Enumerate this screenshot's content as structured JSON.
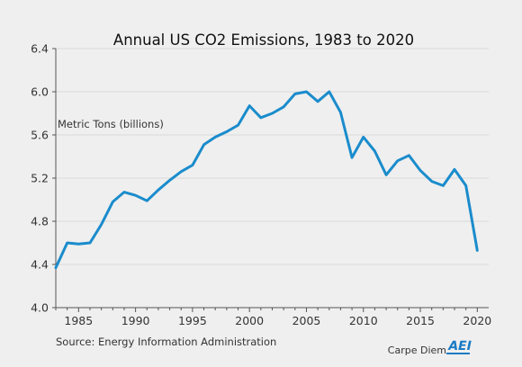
{
  "chart_data": {
    "type": "line",
    "title": "Annual US CO2 Emissions, 1983 to 2020",
    "ylabel": "Metric Tons (billions)",
    "xlabel": "",
    "source": "Source: Energy Information Administration",
    "branding": "Carpe Diem",
    "logo_text": "AEI",
    "x_ticks": [
      1985,
      1990,
      1995,
      2000,
      2005,
      2010,
      2015,
      2020
    ],
    "x_tick_labels": [
      "1985",
      "1990",
      "1995",
      "2000",
      "2005",
      "2010",
      "2015",
      "2020"
    ],
    "y_ticks": [
      4.0,
      4.4,
      4.8,
      5.2,
      5.6,
      6.0,
      6.4
    ],
    "y_tick_labels": [
      "4.0",
      "4.4",
      "4.8",
      "5.2",
      "5.6",
      "6.0",
      "6.4"
    ],
    "xlim": [
      1983,
      2021
    ],
    "ylim": [
      4.0,
      6.4
    ],
    "grid": true,
    "line_color": "#1a8ccc",
    "series": [
      {
        "x": [
          1983,
          1984,
          1985,
          1986,
          1987,
          1988,
          1989,
          1990,
          1991,
          1992,
          1993,
          1994,
          1995,
          1996,
          1997,
          1998,
          1999,
          2000,
          2001,
          2002,
          2003,
          2004,
          2005,
          2006,
          2007,
          2008,
          2009,
          2010,
          2011,
          2012,
          2013,
          2014,
          2015,
          2016,
          2017,
          2018,
          2019,
          2020
        ],
        "values": [
          4.37,
          4.6,
          4.59,
          4.6,
          4.77,
          4.98,
          5.07,
          5.04,
          4.99,
          5.09,
          5.18,
          5.26,
          5.32,
          5.51,
          5.58,
          5.63,
          5.69,
          5.87,
          5.76,
          5.8,
          5.86,
          5.98,
          6.0,
          5.91,
          6.0,
          5.81,
          5.39,
          5.58,
          5.45,
          5.23,
          5.36,
          5.41,
          5.27,
          5.17,
          5.13,
          5.28,
          5.13,
          4.53
        ]
      }
    ]
  }
}
